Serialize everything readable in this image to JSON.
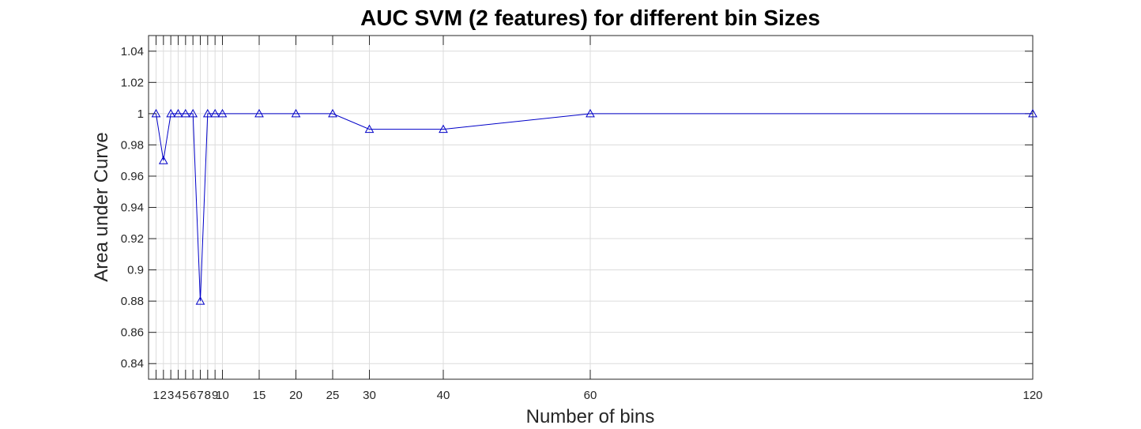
{
  "chart_data": {
    "type": "line",
    "title": "AUC SVM (2 features) for different bin Sizes",
    "xlabel": "Number of bins",
    "ylabel": "Area under Curve",
    "x": [
      1,
      2,
      3,
      4,
      5,
      6,
      7,
      8,
      9,
      10,
      15,
      20,
      25,
      30,
      40,
      60,
      120
    ],
    "x_tick_labels": [
      "1",
      "2",
      "3",
      "4",
      "5",
      "6",
      "7",
      "8",
      "9",
      "10",
      "15",
      "20",
      "25",
      "30",
      "40",
      "60",
      "120"
    ],
    "x_axis_scale": "categorical-nonlinear",
    "series": [
      {
        "values": [
          1.0,
          0.97,
          1.0,
          1.0,
          1.0,
          1.0,
          0.88,
          1.0,
          1.0,
          1.0,
          1.0,
          1.0,
          1.0,
          0.99,
          0.99,
          1.0,
          1.0
        ],
        "marker": "triangle",
        "color": "#0000c8"
      }
    ],
    "ylim": [
      0.83,
      1.05
    ],
    "y_ticks": [
      0.84,
      0.86,
      0.88,
      0.9,
      0.92,
      0.94,
      0.96,
      0.98,
      1,
      1.02,
      1.04
    ],
    "y_tick_labels": [
      "0.84",
      "0.86",
      "0.88",
      "0.9",
      "0.92",
      "0.94",
      "0.96",
      "0.98",
      "1",
      "1.02",
      "1.04"
    ],
    "grid": true,
    "legend": "none"
  }
}
